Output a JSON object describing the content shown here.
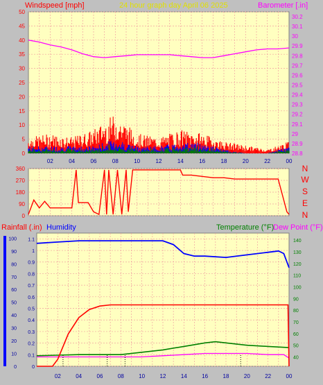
{
  "colors": {
    "background": "#c0c0c0",
    "plot_bg": "#ffffc0",
    "grid": "#f0a0a0",
    "wind_gust": "#ff0000",
    "wind_avg": "#0000ff",
    "wind_low": "#008000",
    "barometer": "#ff00ff",
    "direction": "#ff0000",
    "rainfall": "#ff0000",
    "humidity": "#0000ff",
    "temperature": "#008000",
    "dewpoint": "#ff00ff",
    "title": "#e0e000"
  },
  "header": {
    "title": "24 hour graph day   April 06 2025",
    "left_label": "Windspeed [mph]",
    "right_label": "Barometer [.in]"
  },
  "bottom_header": {
    "left_label_1": "Rainfall (.in)",
    "left_label_2": "Humidity",
    "right_label_1": "Temperature (°F)",
    "right_label_2": "Dew Point (°F)"
  },
  "chart_data": [
    {
      "type": "line",
      "panel": "wind-barometer",
      "x_ticks": [
        "02",
        "04",
        "06",
        "08",
        "10",
        "12",
        "14",
        "16",
        "18",
        "20",
        "22",
        "00"
      ],
      "y_left": {
        "label": "Windspeed [mph]",
        "ticks": [
          0,
          5,
          10,
          15,
          20,
          25,
          30,
          35,
          40,
          45,
          50
        ],
        "range": [
          0,
          50
        ]
      },
      "y_right": {
        "label": "Barometer [.in]",
        "ticks": [
          "28.8",
          "28.9",
          "29",
          "29.1",
          "29.2",
          "29.3",
          "29.4",
          "29.5",
          "29.6",
          "29.7",
          "29.8",
          "29.9",
          "30",
          "30.1",
          "30.2"
        ],
        "range": [
          28.8,
          30.25
        ]
      },
      "series": [
        {
          "name": "Barometer [.in]",
          "x": [
            0,
            1,
            2,
            3,
            4,
            5,
            6,
            7,
            8,
            9,
            10,
            11,
            12,
            13,
            14,
            15,
            16,
            17,
            18,
            19,
            20,
            21,
            22,
            23,
            24
          ],
          "values": [
            29.96,
            29.94,
            29.91,
            29.89,
            29.86,
            29.82,
            29.79,
            29.78,
            29.79,
            29.8,
            29.81,
            29.81,
            29.81,
            29.81,
            29.8,
            29.79,
            29.78,
            29.78,
            29.8,
            29.82,
            29.84,
            29.86,
            29.87,
            29.87,
            29.88
          ]
        }
      ],
      "wind_gust_envelope": {
        "x": [
          0,
          2,
          4,
          6,
          8,
          10,
          12,
          14,
          16,
          18,
          20,
          22,
          24
        ],
        "values": [
          4,
          5,
          4,
          6,
          10,
          5,
          4,
          6,
          5,
          3,
          2,
          1,
          3
        ]
      },
      "wind_avg_envelope": {
        "x": [
          0,
          2,
          4,
          6,
          8,
          10,
          12,
          14,
          16,
          18,
          20,
          22,
          24
        ],
        "values": [
          2,
          2,
          2,
          2,
          4,
          2,
          2,
          3,
          3,
          1,
          0,
          0,
          2
        ]
      },
      "grid": true
    },
    {
      "type": "line",
      "panel": "wind-direction",
      "x_ticks": [
        "02",
        "04",
        "06",
        "08",
        "10",
        "12",
        "14",
        "16",
        "18",
        "20",
        "22",
        "00"
      ],
      "y_left": {
        "ticks": [
          0,
          90,
          180,
          270,
          360
        ],
        "range": [
          0,
          360
        ]
      },
      "y_right": {
        "ticks": [
          "N",
          "W",
          "S",
          "E",
          "N"
        ]
      },
      "series": [
        {
          "name": "direction",
          "x": [
            0,
            0.5,
            1,
            1.5,
            2,
            3,
            4,
            4.4,
            4.6,
            5,
            5.5,
            6,
            6.5,
            7,
            7.2,
            7.4,
            7.8,
            8.2,
            8.6,
            9,
            9.2,
            9.6,
            10,
            11,
            12,
            13,
            14,
            14.2,
            15,
            16,
            17,
            18,
            19,
            20,
            21,
            22,
            23,
            23.8,
            24
          ],
          "values": [
            10,
            120,
            60,
            110,
            60,
            60,
            60,
            350,
            100,
            100,
            100,
            30,
            10,
            350,
            10,
            350,
            10,
            350,
            10,
            350,
            30,
            350,
            350,
            350,
            350,
            350,
            350,
            310,
            310,
            300,
            290,
            290,
            280,
            280,
            280,
            280,
            280,
            30,
            10
          ]
        }
      ],
      "grid": true
    },
    {
      "type": "line",
      "panel": "rain-humidity-temperature",
      "x_ticks": [
        "02",
        "04",
        "06",
        "08",
        "10",
        "12",
        "14",
        "16",
        "18",
        "20",
        "22",
        "00"
      ],
      "y_left_outer": {
        "label": "Rainfall (.in)",
        "ticks": [
          "0",
          "0.1",
          "0.2",
          "0.3",
          "0.4",
          "0.5",
          "0.6",
          "0.7",
          "0.8",
          "0.9",
          "1",
          "1.1"
        ],
        "range": [
          0,
          1.15
        ]
      },
      "y_left_inner": {
        "label": "Humidity",
        "ticks": [
          0,
          10,
          20,
          30,
          40,
          50,
          60,
          70,
          80,
          90,
          100
        ],
        "range": [
          0,
          104
        ]
      },
      "y_right": {
        "label": "Temperature (°F)",
        "ticks": [
          40,
          50,
          60,
          70,
          80,
          90,
          100,
          110,
          120,
          130,
          140
        ],
        "range": [
          32,
          146
        ]
      },
      "series": [
        {
          "name": "Rainfall (.in)",
          "x": [
            0,
            1.5,
            2,
            3,
            4,
            5,
            6,
            7,
            8,
            10,
            12,
            14,
            16,
            18,
            20,
            22,
            23.9,
            24
          ],
          "values": [
            0,
            0,
            0.06,
            0.28,
            0.42,
            0.49,
            0.52,
            0.53,
            0.53,
            0.53,
            0.53,
            0.53,
            0.53,
            0.53,
            0.53,
            0.53,
            0.53,
            0
          ]
        },
        {
          "name": "Humidity",
          "x": [
            0,
            2,
            4,
            6,
            8,
            10,
            12,
            13,
            14,
            15,
            16,
            18,
            20,
            22,
            23,
            23.5,
            24
          ],
          "values": [
            96,
            97,
            98,
            98,
            98,
            98,
            98,
            95,
            88,
            86,
            86,
            85,
            87,
            89,
            90,
            88,
            77
          ]
        },
        {
          "name": "Temperature (°F)",
          "x": [
            0,
            2,
            4,
            6,
            8,
            10,
            12,
            14,
            16,
            17,
            18,
            20,
            22,
            24
          ],
          "values": [
            41,
            41.5,
            42,
            42,
            42,
            44,
            46,
            49,
            52,
            53,
            52,
            50,
            49,
            48
          ]
        },
        {
          "name": "Dew Point (°F)",
          "x": [
            0,
            2,
            4,
            6,
            8,
            10,
            12,
            14,
            16,
            18,
            20,
            22,
            23.5,
            24
          ],
          "values": [
            40,
            40,
            40,
            40,
            40,
            40,
            41,
            42,
            43,
            43,
            43,
            42,
            42,
            39
          ]
        }
      ],
      "grid": true
    }
  ]
}
